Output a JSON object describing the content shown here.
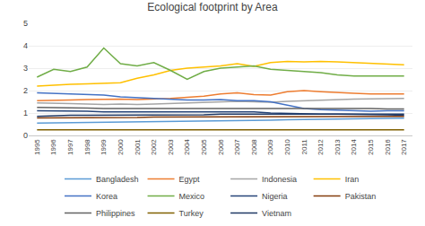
{
  "chart_data": {
    "type": "line",
    "title": "Ecological footprint by Area",
    "x": [
      1995,
      1996,
      1997,
      1998,
      1999,
      2000,
      2001,
      2002,
      2003,
      2004,
      2005,
      2006,
      2007,
      2008,
      2009,
      2010,
      2011,
      2012,
      2013,
      2014,
      2015,
      2016,
      2017
    ],
    "series": [
      {
        "name": "Bangladesh",
        "color": "#5B9BD5",
        "values": [
          0.55,
          0.56,
          0.56,
          0.57,
          0.57,
          0.58,
          0.58,
          0.59,
          0.6,
          0.62,
          0.63,
          0.65,
          0.66,
          0.67,
          0.68,
          0.7,
          0.71,
          0.72,
          0.73,
          0.74,
          0.75,
          0.76,
          0.77
        ]
      },
      {
        "name": "Egypt",
        "color": "#ED7D31",
        "values": [
          1.55,
          1.55,
          1.58,
          1.6,
          1.62,
          1.62,
          1.6,
          1.62,
          1.65,
          1.7,
          1.75,
          1.85,
          1.9,
          1.82,
          1.8,
          1.95,
          2.0,
          1.95,
          1.9,
          1.88,
          1.85,
          1.85,
          1.85
        ]
      },
      {
        "name": "Indonesia",
        "color": "#A5A5A5",
        "values": [
          1.45,
          1.45,
          1.42,
          1.4,
          1.38,
          1.4,
          1.38,
          1.4,
          1.42,
          1.44,
          1.46,
          1.5,
          1.52,
          1.5,
          1.48,
          1.52,
          1.55,
          1.58,
          1.6,
          1.62,
          1.63,
          1.65,
          1.65
        ]
      },
      {
        "name": "Iran",
        "color": "#FFC000",
        "values": [
          2.2,
          2.25,
          2.28,
          2.3,
          2.32,
          2.35,
          2.55,
          2.7,
          2.9,
          3.0,
          3.05,
          3.1,
          3.2,
          3.08,
          3.25,
          3.3,
          3.28,
          3.3,
          3.28,
          3.25,
          3.22,
          3.18,
          3.15
        ]
      },
      {
        "name": "Korea",
        "color": "#4472C4",
        "values": [
          1.9,
          1.88,
          1.85,
          1.82,
          1.8,
          1.72,
          1.68,
          1.65,
          1.6,
          1.58,
          1.58,
          1.6,
          1.55,
          1.55,
          1.5,
          1.35,
          1.2,
          1.15,
          1.12,
          1.1,
          1.08,
          1.1,
          1.1
        ]
      },
      {
        "name": "Mexico",
        "color": "#70AD47",
        "values": [
          2.6,
          2.95,
          2.85,
          3.05,
          3.9,
          3.2,
          3.1,
          3.25,
          2.9,
          2.5,
          2.85,
          3.0,
          3.05,
          3.1,
          2.95,
          2.9,
          2.85,
          2.8,
          2.7,
          2.65,
          2.65,
          2.65,
          2.65
        ]
      },
      {
        "name": "Nigeria",
        "color": "#264478",
        "values": [
          1.1,
          1.1,
          1.08,
          1.08,
          1.05,
          1.05,
          1.05,
          1.05,
          1.05,
          1.05,
          1.05,
          1.05,
          1.05,
          1.05,
          1.0,
          0.98,
          0.95,
          0.95,
          0.95,
          0.95,
          0.92,
          0.92,
          0.9
        ]
      },
      {
        "name": "Pakistan",
        "color": "#843C0C",
        "values": [
          0.78,
          0.78,
          0.78,
          0.8,
          0.8,
          0.8,
          0.8,
          0.82,
          0.82,
          0.82,
          0.82,
          0.82,
          0.82,
          0.82,
          0.82,
          0.82,
          0.82,
          0.82,
          0.82,
          0.82,
          0.82,
          0.83,
          0.85
        ]
      },
      {
        "name": "Philippines",
        "color": "#636363",
        "values": [
          1.25,
          1.25,
          1.22,
          1.22,
          1.2,
          1.2,
          1.2,
          1.2,
          1.22,
          1.22,
          1.22,
          1.22,
          1.22,
          1.22,
          1.2,
          1.2,
          1.2,
          1.2,
          1.2,
          1.2,
          1.2,
          1.18,
          1.18
        ]
      },
      {
        "name": "Turkey",
        "color": "#806000",
        "values": [
          0.25,
          0.25,
          0.25,
          0.25,
          0.25,
          0.25,
          0.25,
          0.25,
          0.25,
          0.25,
          0.25,
          0.25,
          0.25,
          0.25,
          0.25,
          0.25,
          0.25,
          0.25,
          0.25,
          0.25,
          0.25,
          0.25,
          0.25
        ]
      },
      {
        "name": "Vietnam",
        "color": "#1F3864",
        "values": [
          0.85,
          0.88,
          0.9,
          0.9,
          0.9,
          0.9,
          0.9,
          0.9,
          0.92,
          0.92,
          0.92,
          0.95,
          0.95,
          0.95,
          0.95,
          0.95,
          0.95,
          0.95,
          0.95,
          0.95,
          0.95,
          0.95,
          0.95
        ]
      }
    ],
    "xlim": [
      1994.5,
      2017.5
    ],
    "xticks": [
      1995,
      1996,
      1997,
      1998,
      1999,
      2000,
      2001,
      2002,
      2003,
      2004,
      2005,
      2006,
      2007,
      2008,
      2009,
      2010,
      2011,
      2012,
      2013,
      2014,
      2015,
      2016,
      2017
    ],
    "ylim": [
      0,
      5
    ],
    "yticks": [
      0,
      1,
      2,
      3,
      4,
      5
    ],
    "grid": true,
    "legend": "bottom"
  }
}
